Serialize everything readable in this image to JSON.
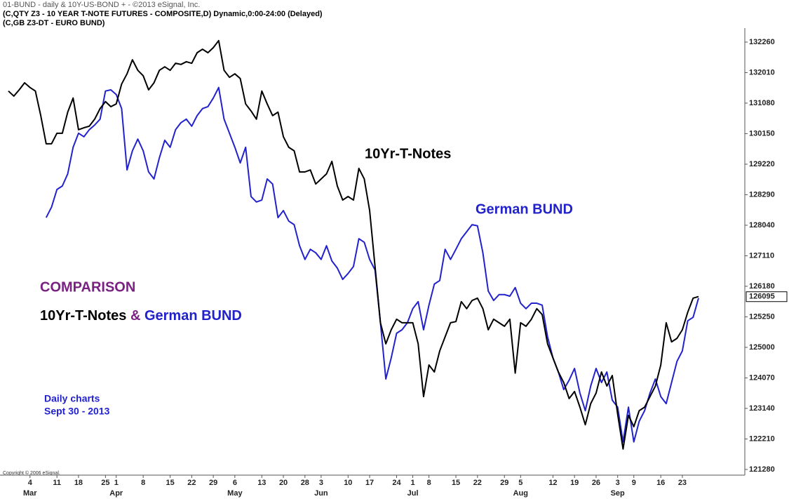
{
  "chart_data": {
    "type": "line",
    "header": [
      "01-BUND - daily & 10Y-US-BOND + - ©2013 eSignal, Inc.",
      "(C,QTY Z3 - 10 YEAR T-NOTE FUTURES - COMPOSITE,D) Dynamic,0:00-24:00 (Delayed)",
      "(C,GB Z3-DT - EURO BUND)"
    ],
    "annotations": {
      "tnote_label": "10Yr-T-Notes",
      "bund_label": "German BUND",
      "comparison": "COMPARISON",
      "comparison_line": [
        "10Yr-T-Notes",
        "&",
        "German BUND"
      ],
      "note": [
        "Daily charts",
        "Sept 30 - 2013"
      ],
      "copyright": "Copyright © 2006 eSignal."
    },
    "last_price": {
      "value": 126.296875,
      "label": "126095"
    },
    "months": [
      "Mar",
      "Apr",
      "May",
      "Jun",
      "Jul",
      "Aug",
      "Sep"
    ],
    "categories": [
      null,
      null,
      null,
      null,
      "4",
      null,
      null,
      null,
      null,
      "11",
      null,
      null,
      null,
      "18",
      null,
      null,
      null,
      null,
      "25",
      null,
      "1",
      null,
      null,
      null,
      null,
      "8",
      null,
      null,
      null,
      null,
      "15",
      null,
      null,
      null,
      "22",
      null,
      null,
      null,
      "29",
      null,
      null,
      null,
      "6",
      null,
      null,
      null,
      null,
      "13",
      null,
      null,
      null,
      "20",
      null,
      null,
      null,
      "28",
      null,
      null,
      "3",
      null,
      null,
      null,
      null,
      "10",
      null,
      null,
      null,
      "17",
      null,
      null,
      null,
      null,
      "24",
      null,
      null,
      "1",
      null,
      null,
      "8",
      null,
      null,
      null,
      null,
      "15",
      null,
      null,
      null,
      "22",
      null,
      null,
      null,
      null,
      "29",
      null,
      null,
      "5",
      null,
      null,
      null,
      null,
      null,
      "12",
      null,
      null,
      null,
      "19",
      null,
      null,
      null,
      "26",
      null,
      null,
      null,
      "3",
      null,
      null,
      "9",
      null,
      null,
      null,
      null,
      "16",
      null,
      null,
      null,
      "23",
      null,
      null,
      null
    ],
    "series": [
      {
        "name": "10Yr-T-Notes",
        "color": "#000000",
        "values": [
          131.56,
          131.43,
          131.59,
          131.77,
          131.65,
          131.56,
          130.93,
          130.21,
          130.21,
          130.48,
          130.48,
          131.02,
          131.38,
          130.57,
          130.62,
          130.66,
          130.84,
          131.11,
          131.29,
          131.16,
          131.23,
          131.74,
          132.0,
          132.36,
          132.09,
          131.95,
          131.59,
          131.77,
          132.09,
          132.18,
          132.09,
          132.27,
          132.24,
          132.31,
          132.27,
          132.54,
          132.63,
          132.54,
          132.67,
          132.85,
          132.09,
          131.91,
          132.0,
          131.88,
          131.23,
          131.05,
          130.84,
          131.56,
          131.23,
          130.93,
          131.02,
          130.39,
          130.12,
          130.03,
          129.49,
          129.49,
          129.54,
          129.18,
          129.31,
          129.44,
          129.76,
          129.13,
          128.77,
          128.86,
          128.77,
          129.58,
          129.31,
          128.5,
          127.07,
          125.63,
          125.09,
          125.45,
          125.72,
          125.63,
          125.63,
          125.63,
          125.09,
          123.74,
          124.55,
          124.37,
          124.91,
          125.27,
          125.63,
          125.66,
          126.17,
          125.99,
          126.2,
          126.26,
          125.99,
          125.45,
          125.72,
          125.63,
          125.54,
          125.72,
          124.34,
          125.63,
          125.54,
          125.72,
          125.99,
          125.84,
          125.09,
          124.73,
          124.37,
          124.1,
          123.69,
          123.87,
          123.47,
          123.02,
          123.56,
          123.83,
          124.37,
          124.01,
          124.28,
          123.29,
          122.4,
          123.26,
          122.97,
          123.38,
          123.47,
          123.74,
          124.01,
          124.55,
          125.63,
          125.14,
          125.23,
          125.45,
          125.9,
          126.26,
          126.3
        ]
      },
      {
        "name": "German BUND",
        "color": "#2222cc",
        "values": [
          null,
          null,
          null,
          null,
          null,
          null,
          null,
          128.32,
          128.59,
          129.04,
          129.13,
          129.44,
          130.12,
          130.48,
          130.39,
          130.57,
          130.69,
          130.84,
          131.56,
          131.59,
          131.47,
          131.11,
          129.54,
          130.03,
          130.33,
          130.03,
          129.49,
          129.31,
          129.85,
          130.3,
          130.12,
          130.57,
          130.75,
          130.84,
          130.66,
          130.93,
          131.11,
          131.16,
          131.38,
          131.65,
          130.84,
          130.48,
          130.12,
          129.72,
          130.12,
          128.86,
          128.72,
          128.77,
          129.31,
          129.18,
          128.32,
          128.5,
          128.23,
          128.14,
          127.6,
          127.25,
          127.51,
          127.42,
          127.25,
          127.6,
          127.21,
          127.03,
          126.74,
          126.89,
          127.07,
          127.78,
          127.69,
          127.25,
          126.98,
          125.63,
          124.19,
          124.73,
          125.36,
          125.45,
          125.63,
          125.99,
          126.17,
          125.45,
          126.08,
          126.62,
          126.71,
          127.51,
          127.25,
          127.51,
          127.78,
          127.96,
          128.14,
          128.11,
          127.42,
          126.44,
          126.2,
          126.35,
          126.35,
          126.31,
          126.53,
          126.13,
          125.99,
          126.13,
          126.13,
          126.08,
          125.27,
          124.73,
          124.37,
          123.92,
          124.16,
          124.46,
          123.83,
          123.38,
          124.01,
          124.46,
          124.1,
          124.37,
          123.65,
          123.47,
          122.58,
          123.47,
          122.58,
          123.11,
          123.38,
          123.83,
          124.19,
          123.74,
          123.56,
          124.1,
          124.64,
          124.91,
          125.68,
          125.77,
          126.26
        ]
      }
    ],
    "ylim": [
      121.73,
      133.53
    ],
    "yticks": [
      {
        "value": 121.875,
        "label": "121280"
      },
      {
        "value": 122.65625,
        "label": "122210"
      },
      {
        "value": 123.4375,
        "label": "123140"
      },
      {
        "value": 124.21875,
        "label": "124070"
      },
      {
        "value": 125.0,
        "label": "125000"
      },
      {
        "value": 125.78125,
        "label": "125250"
      },
      {
        "value": 126.5625,
        "label": "126180"
      },
      {
        "value": 127.34375,
        "label": "127110"
      },
      {
        "value": 128.125,
        "label": "128040"
      },
      {
        "value": 128.90625,
        "label": "128290"
      },
      {
        "value": 129.6875,
        "label": "129220"
      },
      {
        "value": 130.46875,
        "label": "130150"
      },
      {
        "value": 131.25,
        "label": "131080"
      },
      {
        "value": 132.03125,
        "label": "132010"
      },
      {
        "value": 132.8125,
        "label": "132260"
      }
    ],
    "grid": false
  }
}
